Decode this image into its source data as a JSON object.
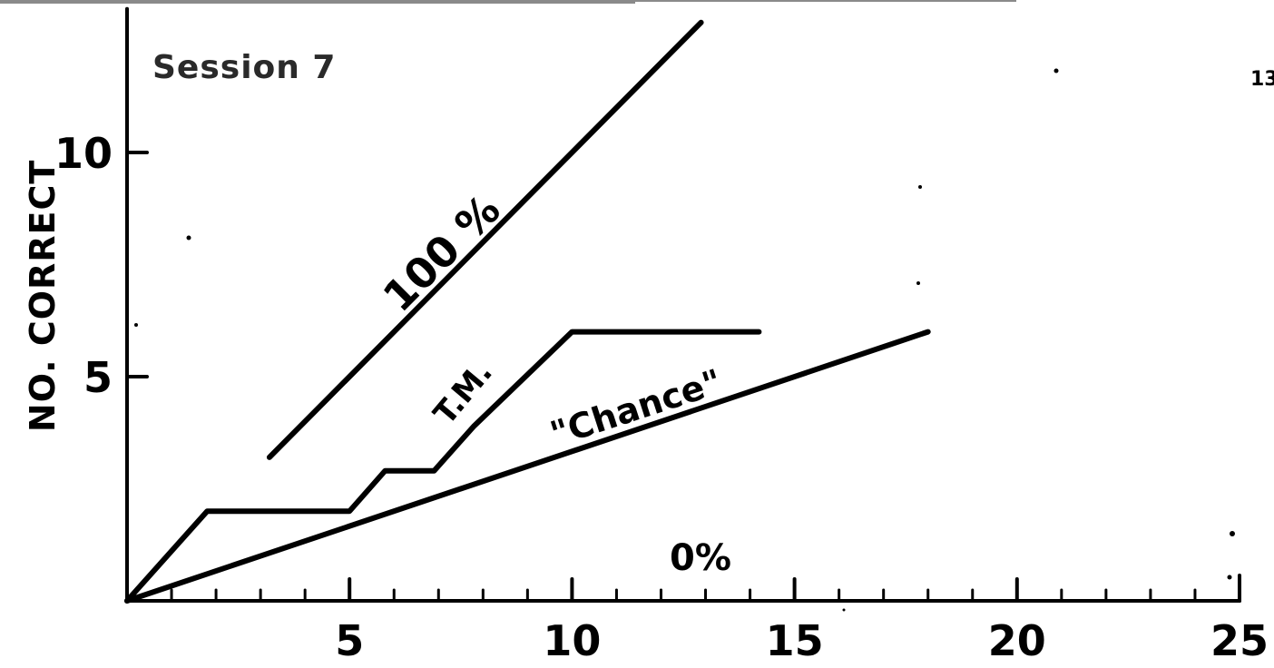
{
  "page_mark": "13",
  "chart_data": {
    "type": "line",
    "title": "Session 7",
    "ylabel": "NO. CORRECT",
    "xlabel": "",
    "xlim": [
      0,
      25
    ],
    "ylim": [
      0,
      13
    ],
    "x_ticks": [
      5,
      10,
      15,
      20,
      25
    ],
    "x_tick_labels": [
      "5",
      "10",
      "15",
      "20",
      "25"
    ],
    "x_minor_step": 1,
    "y_ticks": [
      5,
      10
    ],
    "y_tick_labels": [
      "5",
      "10"
    ],
    "grid": false,
    "legend": "none",
    "series": [
      {
        "name": "100 %",
        "x": [
          3.2,
          12.9
        ],
        "y": [
          3.2,
          12.9
        ]
      },
      {
        "name": "T.M.",
        "x": [
          0,
          1.8,
          5,
          5.8,
          6.9,
          7.8,
          10,
          10.5,
          14.2
        ],
        "y": [
          0,
          2,
          2,
          2.9,
          2.9,
          3.9,
          6,
          6,
          6
        ]
      },
      {
        "name": "\"Chance\"",
        "x": [
          0,
          18
        ],
        "y": [
          0,
          6
        ]
      }
    ],
    "annotations": [
      {
        "text": "0%"
      }
    ]
  }
}
